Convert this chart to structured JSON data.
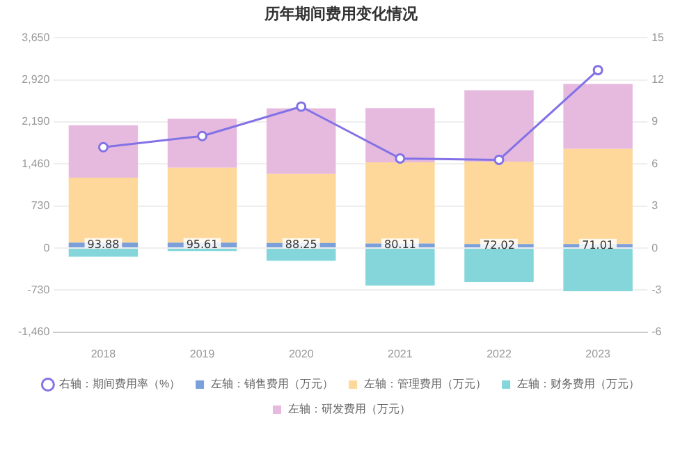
{
  "chart_data": {
    "type": "bar",
    "title": "历年期间费用变化情况",
    "categories": [
      "2018",
      "2019",
      "2020",
      "2021",
      "2022",
      "2023"
    ],
    "stacked": true,
    "series": [
      {
        "name": "左轴：销售费用（万元）",
        "color": "#7b9fd8",
        "values": [
          93.88,
          95.61,
          88.25,
          80.11,
          72.02,
          71.01
        ],
        "value_labels": [
          "93.88",
          "95.61",
          "88.25",
          "80.11",
          "72.02",
          "71.01"
        ]
      },
      {
        "name": "左轴：管理费用（万元）",
        "color": "#fdd89a",
        "values": [
          1130,
          1300,
          1200,
          1410,
          1430,
          1650
        ]
      },
      {
        "name": "左轴：财务费用（万元）",
        "color": "#85d6da",
        "values": [
          -150,
          -50,
          -220,
          -650,
          -590,
          -750
        ]
      },
      {
        "name": "左轴：研发费用（万元）",
        "color": "#e6bade",
        "values": [
          910,
          850,
          1140,
          940,
          1240,
          1130
        ]
      },
      {
        "name": "右轴：期间费用率（%）",
        "type": "line",
        "axis": "y2",
        "color": "#8272e6",
        "marker": "circle",
        "values": [
          7.2,
          8.0,
          10.1,
          6.4,
          6.3,
          12.7
        ]
      }
    ],
    "ylim": [
      -1460,
      3650
    ],
    "yticks": [
      {
        "value": -1460,
        "label": "-1,460"
      },
      {
        "value": -730,
        "label": "-730"
      },
      0,
      730,
      {
        "value": 1460,
        "label": "1,460"
      },
      {
        "value": 2190,
        "label": "2,190"
      },
      {
        "value": 2920,
        "label": "2,920"
      },
      {
        "value": 3650,
        "label": "3,650"
      }
    ],
    "y2lim": [
      -6,
      15
    ],
    "y2ticks": [
      -6,
      -3,
      0,
      3,
      6,
      9,
      12,
      15
    ],
    "grid": "y",
    "legend": "bottom"
  }
}
